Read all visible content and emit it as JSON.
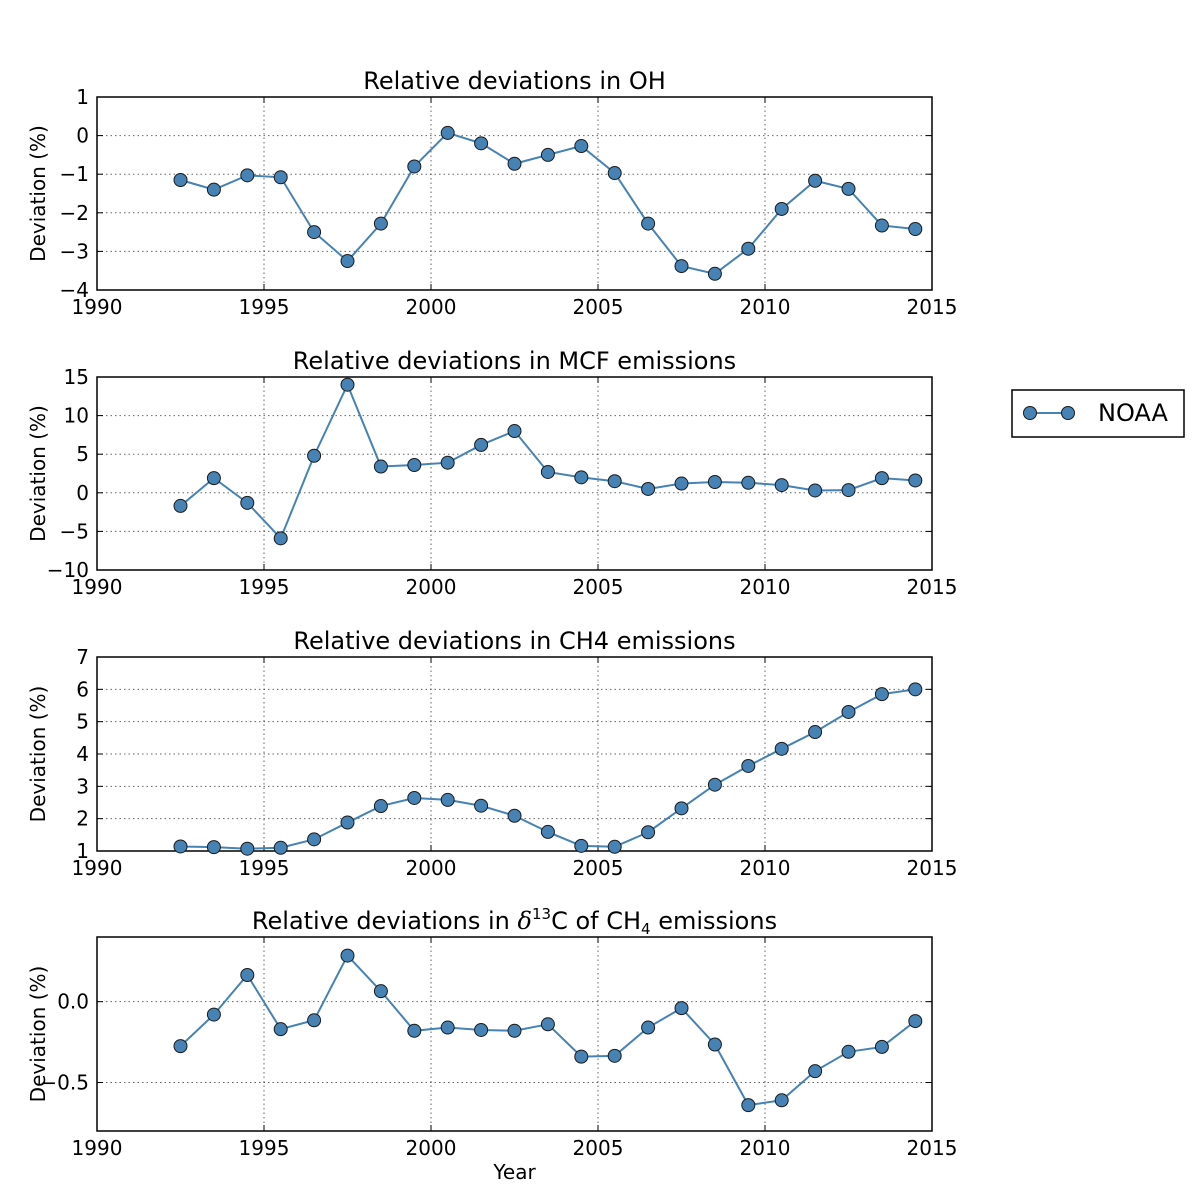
{
  "chart_data": [
    {
      "type": "line",
      "title": "Relative deviations in OH",
      "title_parts": [
        {
          "t": "Relative deviations in OH"
        }
      ],
      "xlabel": "",
      "ylabel": "Deviation (%)",
      "xlim": [
        1990,
        2015
      ],
      "ylim": [
        -4,
        1
      ],
      "xticks": [
        1990,
        1995,
        2000,
        2005,
        2010,
        2015
      ],
      "xtick_labels": [
        "1990",
        "1995",
        "2000",
        "2005",
        "2010",
        "2015"
      ],
      "yticks": [
        -4,
        -3,
        -2,
        -1,
        0,
        1
      ],
      "ytick_labels": [
        "−4",
        "−3",
        "−2",
        "−1",
        "0",
        "1"
      ],
      "grid": true,
      "series": [
        {
          "name": "NOAA",
          "color": "#4682b4",
          "x": [
            1992.5,
            1993.5,
            1994.5,
            1995.5,
            1996.5,
            1997.5,
            1998.5,
            1999.5,
            2000.5,
            2001.5,
            2002.5,
            2003.5,
            2004.5,
            2005.5,
            2006.5,
            2007.5,
            2008.5,
            2009.5,
            2010.5,
            2011.5,
            2012.5,
            2013.5,
            2014.5
          ],
          "values": [
            -1.15,
            -1.4,
            -1.03,
            -1.08,
            -2.5,
            -3.25,
            -2.28,
            -0.8,
            0.07,
            -0.2,
            -0.73,
            -0.5,
            -0.27,
            -0.97,
            -2.28,
            -3.38,
            -3.58,
            -2.93,
            -1.9,
            -1.17,
            -1.38,
            -2.33,
            -2.42
          ]
        }
      ]
    },
    {
      "type": "line",
      "title": "Relative deviations in MCF emissions",
      "title_parts": [
        {
          "t": "Relative deviations in MCF emissions"
        }
      ],
      "xlabel": "",
      "ylabel": "Deviation (%)",
      "xlim": [
        1990,
        2015
      ],
      "ylim": [
        -10,
        15
      ],
      "xticks": [
        1990,
        1995,
        2000,
        2005,
        2010,
        2015
      ],
      "xtick_labels": [
        "1990",
        "1995",
        "2000",
        "2005",
        "2010",
        "2015"
      ],
      "yticks": [
        -10,
        -5,
        0,
        5,
        10,
        15
      ],
      "ytick_labels": [
        "−10",
        "−5",
        "0",
        "5",
        "10",
        "15"
      ],
      "grid": true,
      "series": [
        {
          "name": "NOAA",
          "color": "#4682b4",
          "x": [
            1992.5,
            1993.5,
            1994.5,
            1995.5,
            1996.5,
            1997.5,
            1998.5,
            1999.5,
            2000.5,
            2001.5,
            2002.5,
            2003.5,
            2004.5,
            2005.5,
            2006.5,
            2007.5,
            2008.5,
            2009.5,
            2010.5,
            2011.5,
            2012.5,
            2013.5,
            2014.5
          ],
          "values": [
            -1.7,
            1.9,
            -1.3,
            -5.9,
            4.8,
            14.0,
            3.4,
            3.6,
            3.9,
            6.2,
            8.0,
            2.7,
            2.0,
            1.5,
            0.5,
            1.2,
            1.4,
            1.3,
            1.0,
            0.3,
            0.35,
            1.9,
            1.6
          ]
        }
      ]
    },
    {
      "type": "line",
      "title": "Relative deviations in CH4 emissions",
      "title_parts": [
        {
          "t": "Relative deviations in CH4 emissions"
        }
      ],
      "xlabel": "",
      "ylabel": "Deviation (%)",
      "xlim": [
        1990,
        2015
      ],
      "ylim": [
        1,
        7
      ],
      "xticks": [
        1990,
        1995,
        2000,
        2005,
        2010,
        2015
      ],
      "xtick_labels": [
        "1990",
        "1995",
        "2000",
        "2005",
        "2010",
        "2015"
      ],
      "yticks": [
        1,
        2,
        3,
        4,
        5,
        6,
        7
      ],
      "ytick_labels": [
        "1",
        "2",
        "3",
        "4",
        "5",
        "6",
        "7"
      ],
      "grid": true,
      "series": [
        {
          "name": "NOAA",
          "color": "#4682b4",
          "x": [
            1992.5,
            1993.5,
            1994.5,
            1995.5,
            1996.5,
            1997.5,
            1998.5,
            1999.5,
            2000.5,
            2001.5,
            2002.5,
            2003.5,
            2004.5,
            2005.5,
            2006.5,
            2007.5,
            2008.5,
            2009.5,
            2010.5,
            2011.5,
            2012.5,
            2013.5,
            2014.5
          ],
          "values": [
            1.14,
            1.12,
            1.07,
            1.1,
            1.36,
            1.88,
            2.39,
            2.64,
            2.58,
            2.4,
            2.09,
            1.59,
            1.16,
            1.13,
            1.58,
            2.32,
            3.05,
            3.63,
            4.16,
            4.68,
            5.3,
            5.85,
            6.0
          ]
        }
      ]
    },
    {
      "type": "line",
      "title": "Relative deviations in δ13C of CH4 emissions",
      "title_parts": [
        {
          "t": "Relative deviations in "
        },
        {
          "t": "δ",
          "italic": true
        },
        {
          "t": "13",
          "sup": true
        },
        {
          "t": "C of CH"
        },
        {
          "t": "4",
          "sub": true
        },
        {
          "t": " emissions"
        }
      ],
      "xlabel": "Year",
      "ylabel": "Deviation (%)",
      "xlim": [
        1990,
        2015
      ],
      "ylim": [
        -0.8,
        0.4
      ],
      "xticks": [
        1990,
        1995,
        2000,
        2005,
        2010,
        2015
      ],
      "xtick_labels": [
        "1990",
        "1995",
        "2000",
        "2005",
        "2010",
        "2015"
      ],
      "yticks": [
        -0.5,
        0.0
      ],
      "ytick_labels": [
        "−0.5",
        "0.0"
      ],
      "grid": true,
      "series": [
        {
          "name": "NOAA",
          "color": "#4682b4",
          "x": [
            1992.5,
            1993.5,
            1994.5,
            1995.5,
            1996.5,
            1997.5,
            1998.5,
            1999.5,
            2000.5,
            2001.5,
            2002.5,
            2003.5,
            2004.5,
            2005.5,
            2006.5,
            2007.5,
            2008.5,
            2009.5,
            2010.5,
            2011.5,
            2012.5,
            2013.5,
            2014.5
          ],
          "values": [
            -0.275,
            -0.08,
            0.165,
            -0.17,
            -0.115,
            0.285,
            0.065,
            -0.18,
            -0.16,
            -0.175,
            -0.18,
            -0.14,
            -0.34,
            -0.335,
            -0.16,
            -0.04,
            -0.265,
            -0.64,
            -0.61,
            -0.43,
            -0.31,
            -0.28,
            -0.12
          ]
        }
      ]
    }
  ],
  "legend": {
    "label": "NOAA",
    "color": "#4682b4",
    "placement": "right, beside second panel"
  }
}
